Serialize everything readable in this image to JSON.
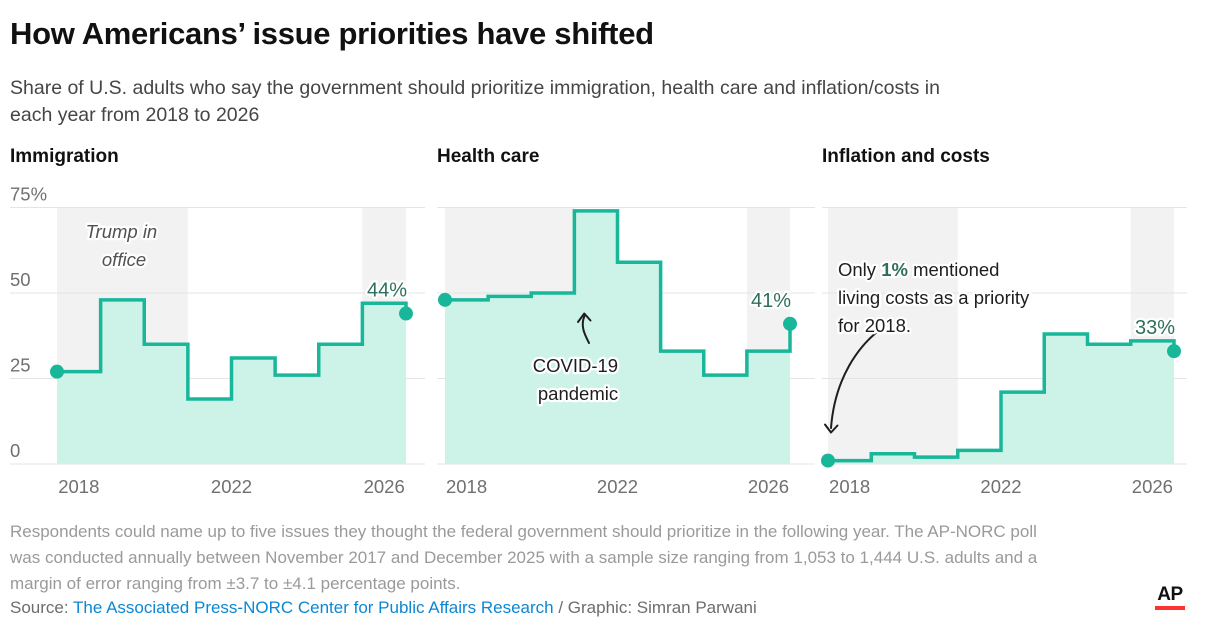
{
  "header": {
    "title": "How Americans’ issue priorities have shifted",
    "subtitle_line1": "Share of U.S. adults who say the government should prioritize immigration, health care and inflation/costs in",
    "subtitle_line2": "each year from 2018 to 2026"
  },
  "chart_data": [
    {
      "type": "area",
      "line_style": "step",
      "title": "Immigration",
      "x": [
        2018,
        2019,
        2020,
        2021,
        2022,
        2023,
        2024,
        2025,
        2026
      ],
      "values": [
        27,
        48,
        35,
        19,
        31,
        26,
        35,
        47,
        44
      ],
      "end_label": "44%",
      "x_ticks": [
        "2018",
        "2022",
        "2026"
      ],
      "y_ticks": [
        "75%",
        "50",
        "25",
        "0"
      ],
      "ylim": [
        0,
        75
      ],
      "grid": true,
      "shaded_years": [
        [
          2018,
          2020
        ],
        [
          2025,
          2026
        ]
      ],
      "annotation": {
        "line1": "Trump in",
        "line2": "office"
      }
    },
    {
      "type": "area",
      "line_style": "step",
      "title": "Health care",
      "x": [
        2018,
        2019,
        2020,
        2021,
        2022,
        2023,
        2024,
        2025,
        2026
      ],
      "values": [
        48,
        49,
        50,
        74,
        59,
        33,
        26,
        33,
        41
      ],
      "end_label": "41%",
      "x_ticks": [
        "2018",
        "2022",
        "2026"
      ],
      "y_ticks": [
        "75%",
        "50",
        "25",
        "0"
      ],
      "ylim": [
        0,
        75
      ],
      "grid": true,
      "shaded_years": [
        [
          2018,
          2020
        ],
        [
          2025,
          2026
        ]
      ],
      "annotation": {
        "line1": "COVID-19",
        "line2": "pandemic"
      }
    },
    {
      "type": "area",
      "line_style": "step",
      "title": "Inflation and costs",
      "x": [
        2018,
        2019,
        2020,
        2021,
        2022,
        2023,
        2024,
        2025,
        2026
      ],
      "values": [
        1,
        3,
        2,
        4,
        21,
        38,
        35,
        36,
        33
      ],
      "end_label": "33%",
      "x_ticks": [
        "2018",
        "2022",
        "2026"
      ],
      "y_ticks": [
        "75%",
        "50",
        "25",
        "0"
      ],
      "ylim": [
        0,
        75
      ],
      "grid": true,
      "shaded_years": [
        [
          2018,
          2020
        ],
        [
          2025,
          2026
        ]
      ],
      "annotation": {
        "line1_pre": "Only ",
        "line1_bold": "1%",
        "line1_post": " mentioned",
        "line2": "living costs as a priority",
        "line3": "for 2018."
      }
    }
  ],
  "colors": {
    "line": "#18b79a",
    "fill": "#cdf3e8",
    "band": "#f2f2f2",
    "grid": "#e4e4e4",
    "label_green": "#2e6f5c",
    "link_blue": "#0b87d4",
    "ap_red": "#ff322e"
  },
  "footnote": {
    "lines": [
      "Respondents could name up to five issues they thought the federal government should prioritize in the following year. The AP-NORC poll",
      "was conducted annually between November 2017 and December 2025 with a sample size ranging from 1,053 to 1,444 U.S. adults and a",
      "margin of error ranging from ±3.7 to ±4.1 percentage points."
    ]
  },
  "source": {
    "label": "Source: ",
    "link": "The Associated Press-NORC Center for Public Affairs Research",
    "separator": " / ",
    "credit": "Graphic: Simran Parwani"
  },
  "logo": {
    "text": "AP"
  }
}
